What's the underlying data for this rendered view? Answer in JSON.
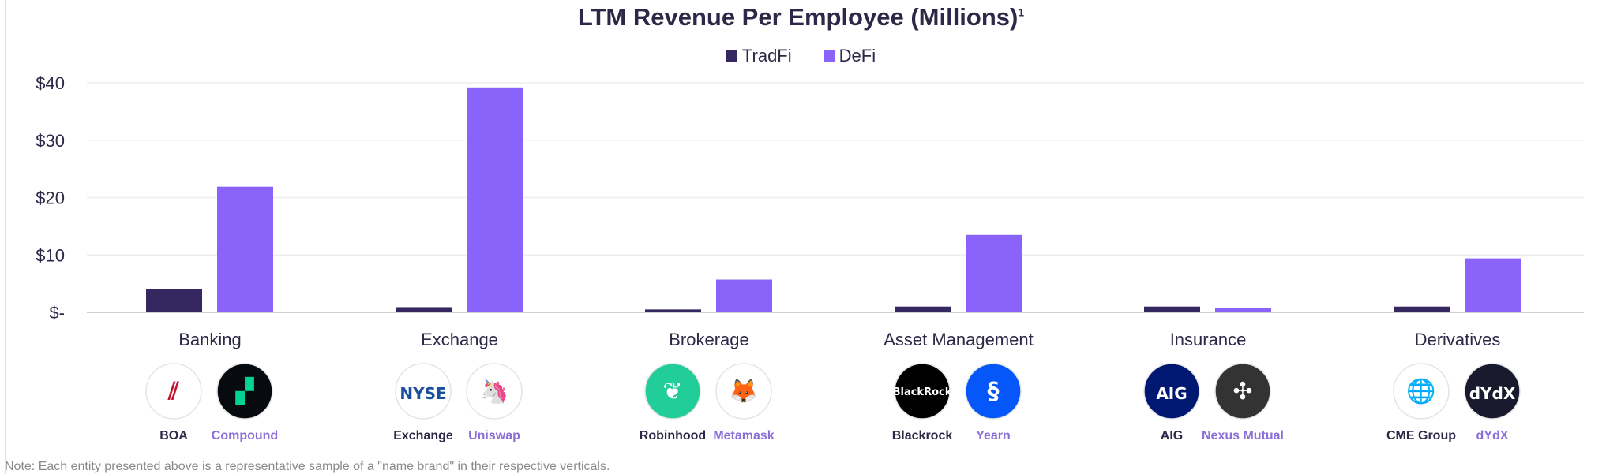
{
  "chart_data": {
    "type": "bar",
    "title": "LTM Revenue Per Employee (Millions)",
    "title_superscript": "1",
    "categories": [
      "Banking",
      "Exchange",
      "Brokerage",
      "Asset Management",
      "Insurance",
      "Derivatives"
    ],
    "series": [
      {
        "name": "TradFi",
        "color": "#35275f",
        "values": [
          4.1,
          0.9,
          0.5,
          1.0,
          1.0,
          1.0
        ]
      },
      {
        "name": "DeFi",
        "color": "#8a63fa",
        "values": [
          21.9,
          39.2,
          5.7,
          13.5,
          0.8,
          9.4
        ]
      }
    ],
    "ylim": [
      0,
      40
    ],
    "yticks": [
      0,
      10,
      20,
      30,
      40
    ],
    "ytick_labels": [
      "$-",
      "$10",
      "$20",
      "$30",
      "$40"
    ],
    "xlabel": "",
    "ylabel": "",
    "grid": true,
    "legend": "top-center"
  },
  "entities": [
    {
      "tradfi": {
        "name": "BOA",
        "logo": "boa-logo",
        "bg": "#ffffff",
        "fg": "#c8102e",
        "glyph": "⫽"
      },
      "defi": {
        "name": "Compound",
        "logo": "compound-logo",
        "bg": "#070a0e",
        "fg": "#00d395",
        "glyph": "▞"
      }
    },
    {
      "tradfi": {
        "name": "Exchange",
        "logo": "nyse-logo",
        "bg": "#ffffff",
        "fg": "#1a4fa0",
        "glyph": "NYSE"
      },
      "defi": {
        "name": "Uniswap",
        "logo": "uniswap-logo",
        "bg": "#ffffff",
        "fg": "#ff007a",
        "glyph": "🦄"
      }
    },
    {
      "tradfi": {
        "name": "Robinhood",
        "logo": "robinhood-logo",
        "bg": "#21ce99",
        "fg": "#ffffff",
        "glyph": "❦"
      },
      "defi": {
        "name": "Metamask",
        "logo": "metamask-logo",
        "bg": "#ffffff",
        "fg": "#e2761b",
        "glyph": "🦊"
      }
    },
    {
      "tradfi": {
        "name": "Blackrock",
        "logo": "blackrock-logo",
        "bg": "#000000",
        "fg": "#ffffff",
        "glyph": "BlackRock"
      },
      "defi": {
        "name": "Yearn",
        "logo": "yearn-logo",
        "bg": "#0657f9",
        "fg": "#ffffff",
        "glyph": "§"
      }
    },
    {
      "tradfi": {
        "name": "AIG",
        "logo": "aig-logo",
        "bg": "#001871",
        "fg": "#ffffff",
        "glyph": "AIG"
      },
      "defi": {
        "name": "Nexus Mutual",
        "logo": "nexus-mutual-logo",
        "bg": "#333333",
        "fg": "#ffffff",
        "glyph": "✣"
      }
    },
    {
      "tradfi": {
        "name": "CME Group",
        "logo": "cme-group-logo",
        "bg": "#ffffff",
        "fg": "#1ba8d8",
        "glyph": "🌐"
      },
      "defi": {
        "name": "dYdX",
        "logo": "dydx-logo",
        "bg": "#1a1a2e",
        "fg": "#ffffff",
        "glyph": "dYdX"
      }
    }
  ],
  "colors": {
    "tradfi_label": "#2b2947",
    "defi_label": "#8b6fd8"
  },
  "note": "Note: Each entity presented above is a representative sample of a \"name brand\" in their respective verticals."
}
